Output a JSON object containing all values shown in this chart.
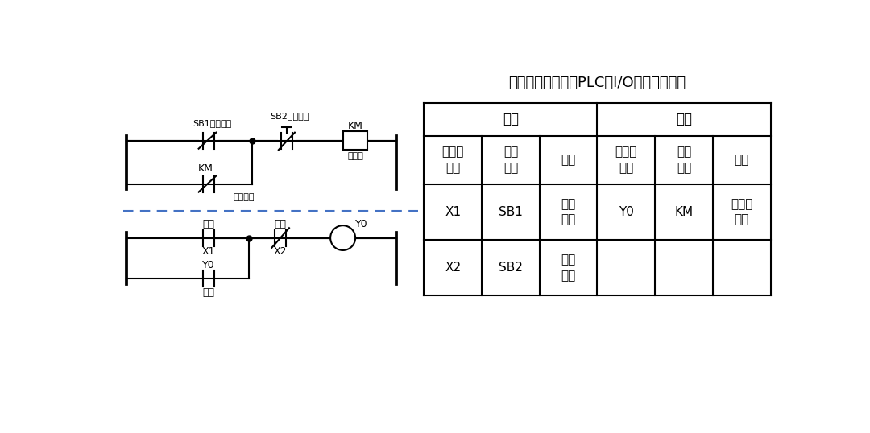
{
  "bg_color": "#ffffff",
  "title": "电机启停控制电路PLC的I/O口地址分配表",
  "dashed_line_color": "#4472C4",
  "table": {
    "header1_in": "输入",
    "header1_out": "输出",
    "header2": [
      "输入继\n电器",
      "输入\n元件",
      "作用",
      "输出继\n电器",
      "输出\n元件",
      "作用"
    ],
    "row1": [
      "X1",
      "SB1",
      "启动\n按钮",
      "Y0",
      "KM",
      "启动接\n触器"
    ],
    "row2": [
      "X2",
      "SB2",
      "停止\n按钮",
      "",
      "",
      ""
    ]
  },
  "labels": {
    "sb1": "SB1启动按钮",
    "sb2": "SB2停止按钮",
    "km_top": "KM",
    "km_bot": "接触器",
    "km_self": "KM",
    "self_lock": "自锁触点",
    "start": "启动",
    "x1": "X1",
    "stop": "停止",
    "x2": "X2",
    "y0_coil": "Y0",
    "y0_self": "Y0",
    "self_lock2": "自锁"
  },
  "line_color": "#000000",
  "font_size_small": 8,
  "font_size_mid": 9,
  "font_size_table": 11,
  "font_size_title": 13
}
